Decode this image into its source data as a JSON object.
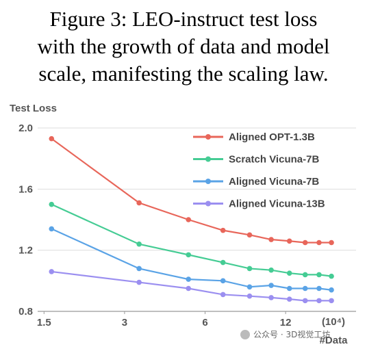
{
  "caption": [
    "Figure 3:  LEO-instruct test loss",
    "with the growth of data and model",
    "scale, manifesting the scaling law."
  ],
  "watermark": "公众号 · 3D视觉工坊",
  "chart_data": {
    "type": "line",
    "y_label": "Test Loss",
    "x_unit": "(10⁴)",
    "x_label": "#Data",
    "x_scale": "log",
    "x": [
      1.6,
      3.4,
      5.2,
      7.0,
      8.8,
      10.6,
      12.4,
      14.2,
      16.0,
      17.8
    ],
    "series": [
      {
        "name": "Aligned OPT-1.3B",
        "color": "#e8665a",
        "values": [
          1.93,
          1.51,
          1.4,
          1.33,
          1.3,
          1.27,
          1.26,
          1.25,
          1.25,
          1.25
        ]
      },
      {
        "name": "Scratch Vicuna-7B",
        "color": "#45cc94",
        "values": [
          1.5,
          1.24,
          1.17,
          1.12,
          1.08,
          1.07,
          1.05,
          1.04,
          1.04,
          1.03
        ]
      },
      {
        "name": "Aligned Vicuna-7B",
        "color": "#5aa3e6",
        "values": [
          1.34,
          1.08,
          1.01,
          1.0,
          0.96,
          0.97,
          0.95,
          0.95,
          0.95,
          0.94
        ]
      },
      {
        "name": "Aligned Vicuna-13B",
        "color": "#9b8ff0",
        "values": [
          1.06,
          0.99,
          0.95,
          0.91,
          0.9,
          0.89,
          0.88,
          0.87,
          0.87,
          0.87
        ]
      }
    ],
    "xlim": [
      1.42,
      22
    ],
    "xticks": [
      1.5,
      3,
      6,
      12
    ],
    "ylim": [
      0.8,
      2.0
    ],
    "yticks": [
      0.8,
      1.2,
      1.6,
      {
        "value": 2.0,
        "label": "2.0"
      }
    ],
    "grid": true,
    "legend": "upper right"
  }
}
